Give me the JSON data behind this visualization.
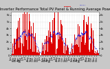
{
  "title": "Solar PV/Inverter Performance Total PV Panel & Running Average Power Output",
  "bg_color": "#c8c8c8",
  "plot_bg_color": "#ffffff",
  "bar_color": "#dd0000",
  "avg_color": "#0000dd",
  "grid_color": "#bbbbbb",
  "num_years": 3,
  "peak_value": 6000,
  "ylim_max": 6500,
  "ytick_values": [
    0,
    1000,
    2000,
    3000,
    4000,
    5000,
    6000
  ],
  "ytick_labels": [
    "0",
    "1k",
    "2k",
    "3k",
    "4k",
    "5k",
    "6k"
  ],
  "title_fontsize": 3.8,
  "tick_fontsize": 2.8,
  "legend_fontsize": 3.0,
  "bar_width": 1.0,
  "avg_window": 30
}
